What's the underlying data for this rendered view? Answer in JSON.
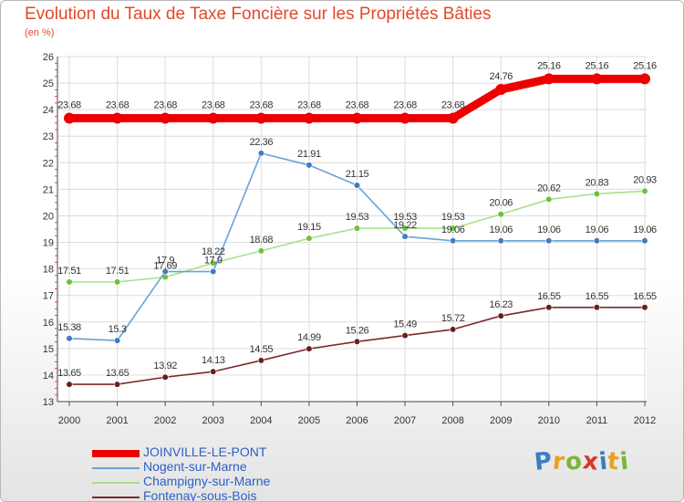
{
  "title": "Evolution du Taux de Taxe Foncière sur les Propriétés Bâties",
  "unit_label": "(en %)",
  "logo": {
    "text": "Proxiti",
    "colors": [
      "#3a7fc1",
      "#e8a21f",
      "#7cb636",
      "#d7372c",
      "#3a7fc1",
      "#e8a21f",
      "#7cb636"
    ]
  },
  "chart_data": {
    "type": "line",
    "title": "Evolution du Taux de Taxe Foncière sur les Propriétés Bâties",
    "ylabel": "(en %)",
    "xlabel": "",
    "x": [
      "2000",
      "2001",
      "2002",
      "2003",
      "2004",
      "2005",
      "2006",
      "2007",
      "2008",
      "2009",
      "2010",
      "2011",
      "2012"
    ],
    "ylim": [
      13,
      26
    ],
    "yticks": [
      "13",
      "14",
      "15",
      "16",
      "17",
      "18",
      "19",
      "20",
      "21",
      "22",
      "23",
      "24",
      "25",
      "26"
    ],
    "grid": true,
    "legend_position": "bottom-left",
    "series": [
      {
        "name": "JOINVILLE-LE-PONT",
        "color": "#ee0000",
        "marker": "#ee0000",
        "values": [
          23.68,
          23.68,
          23.68,
          23.68,
          23.68,
          23.68,
          23.68,
          23.68,
          23.68,
          24.76,
          25.16,
          25.16,
          25.16
        ],
        "labels": [
          "23.68",
          "23.68",
          "23.68",
          "23.68",
          "23.68",
          "23.68",
          "23.68",
          "23.68",
          "23.68",
          "24.76",
          "25.16",
          "25.16",
          "25.16"
        ]
      },
      {
        "name": "Nogent-sur-Marne",
        "color": "#6aa2d6",
        "marker": "#3c7dc4",
        "values": [
          15.38,
          15.3,
          17.9,
          17.9,
          22.36,
          21.91,
          21.15,
          19.22,
          19.06,
          19.06,
          19.06,
          19.06,
          19.06
        ],
        "labels": [
          "15.38",
          "15.3",
          "17.9",
          "17.9",
          "22.36",
          "21.91",
          "21.15",
          "19.22",
          "19.06",
          "19.06",
          "19.06",
          "19.06",
          "19.06"
        ]
      },
      {
        "name": "Champigny-sur-Marne",
        "color": "#a8e08a",
        "marker": "#6cc23a",
        "values": [
          17.51,
          17.51,
          17.69,
          18.22,
          18.68,
          19.15,
          19.53,
          19.53,
          19.53,
          20.06,
          20.62,
          20.83,
          20.93
        ],
        "labels": [
          "17.51",
          "17.51",
          "17.69",
          "18.22",
          "18.68",
          "19.15",
          "19.53",
          "19.53",
          "19.53",
          "20.06",
          "20.62",
          "20.83",
          "20.93"
        ]
      },
      {
        "name": "Fontenay-sous-Bois",
        "color": "#7a2a2a",
        "marker": "#6a1e1e",
        "values": [
          13.65,
          13.65,
          13.92,
          14.13,
          14.55,
          14.99,
          15.26,
          15.49,
          15.72,
          16.23,
          16.55,
          16.55,
          16.55
        ],
        "labels": [
          "13.65",
          "13.65",
          "13.92",
          "14.13",
          "14.55",
          "14.99",
          "15.26",
          "15.49",
          "15.72",
          "16.23",
          "16.55",
          "16.55",
          "16.55"
        ]
      }
    ]
  }
}
